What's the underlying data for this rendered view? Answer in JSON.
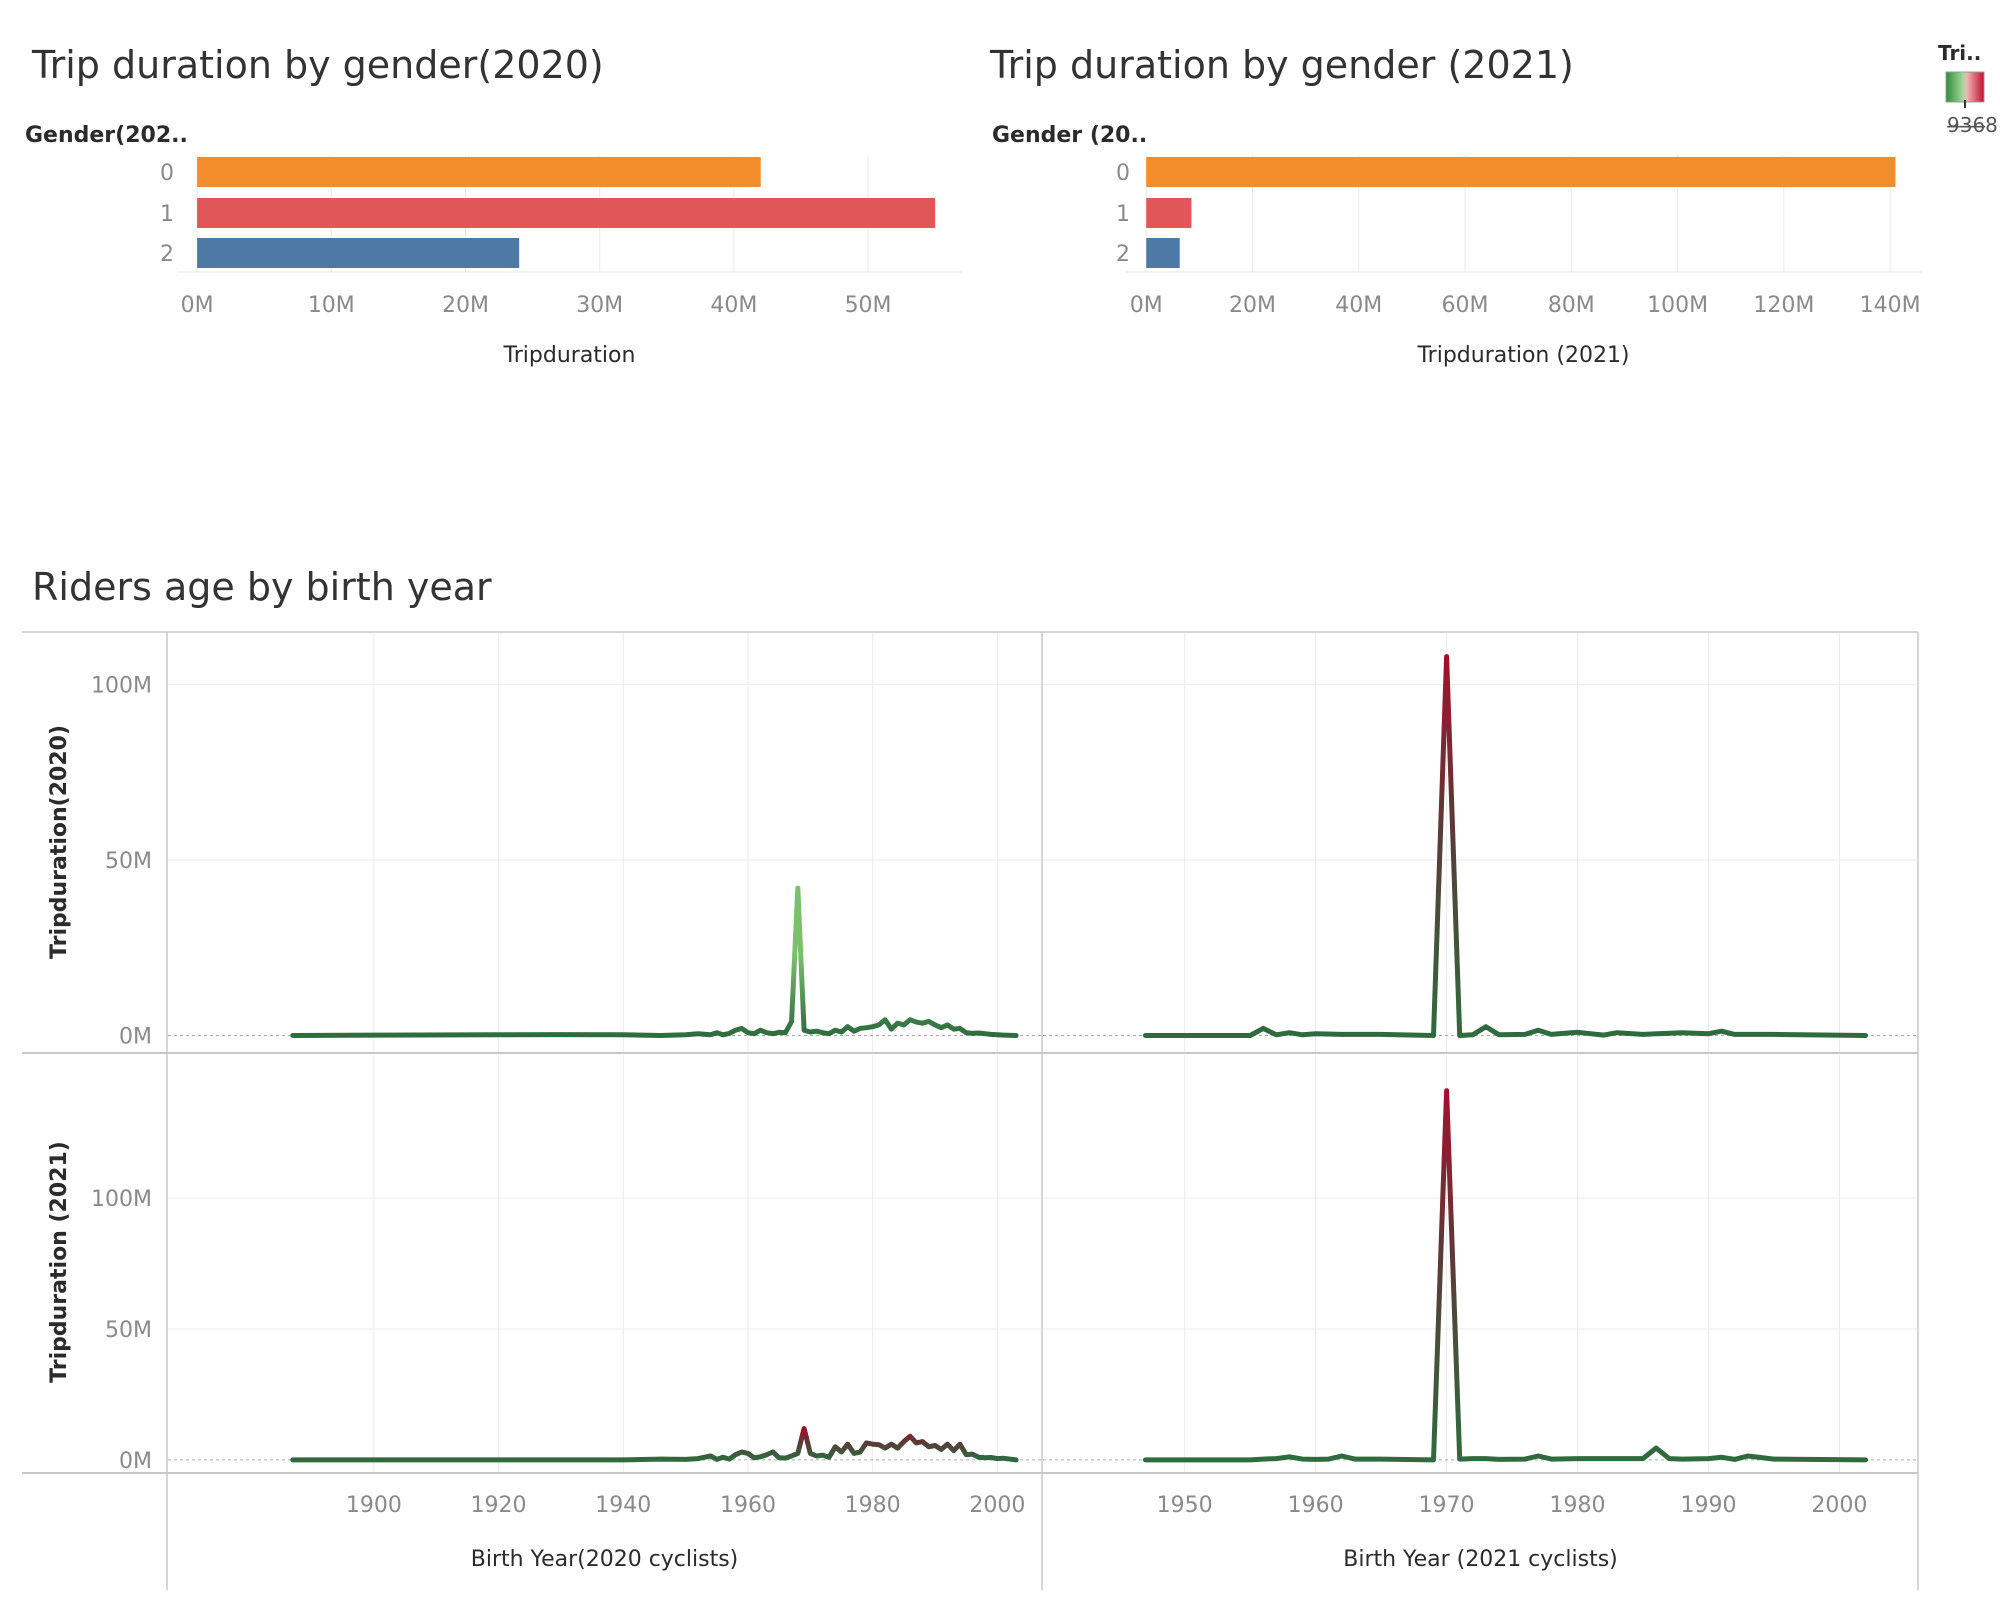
{
  "titles": {
    "bar2020": "Trip duration by gender(2020)",
    "bar2021": "Trip duration by gender (2021)",
    "lines": "Riders age by birth year"
  },
  "bar_headers": {
    "bar2020": "Gender(202..",
    "bar2021": "Gender (20.."
  },
  "legend": {
    "title": "Tri..",
    "label": "9̶3̶6̶8"
  },
  "chart_data": [
    {
      "id": "bar2020",
      "type": "bar",
      "orientation": "horizontal",
      "title": "Trip duration by gender(2020)",
      "ylabel": "Gender(202..",
      "xlabel": "Tripduration",
      "categories": [
        "0",
        "1",
        "2"
      ],
      "values": [
        42000000,
        55000000,
        24000000
      ],
      "colors": [
        "#F28E2B",
        "#E15759",
        "#4E79A7"
      ],
      "xlim": [
        -1500000,
        57000000
      ],
      "ticks": [
        0,
        10000000,
        20000000,
        30000000,
        40000000,
        50000000
      ],
      "tick_labels": [
        "0M",
        "10M",
        "20M",
        "30M",
        "40M",
        "50M"
      ],
      "grid": true
    },
    {
      "id": "bar2021",
      "type": "bar",
      "orientation": "horizontal",
      "title": "Trip duration by gender (2021)",
      "ylabel": "Gender (20..",
      "xlabel": "Tripduration (2021)",
      "categories": [
        "0",
        "1",
        "2"
      ],
      "values": [
        141000000,
        8500000,
        6300000
      ],
      "colors": [
        "#F28E2B",
        "#E15759",
        "#4E79A7"
      ],
      "xlim": [
        -4000000,
        146000000
      ],
      "ticks": [
        0,
        20000000,
        40000000,
        60000000,
        80000000,
        100000000,
        120000000,
        140000000
      ],
      "tick_labels": [
        "0M",
        "20M",
        "40M",
        "60M",
        "80M",
        "100M",
        "120M",
        "140M"
      ],
      "grid": true
    },
    {
      "id": "line2020_a",
      "type": "line",
      "panel": "top-left",
      "x": [
        1887,
        1900,
        1920,
        1930,
        1940,
        1946,
        1950,
        1952,
        1954,
        1955,
        1956,
        1957,
        1958,
        1959,
        1960,
        1961,
        1962,
        1963,
        1964,
        1965,
        1966,
        1967,
        1968,
        1969,
        1970,
        1971,
        1972,
        1973,
        1974,
        1975,
        1976,
        1977,
        1978,
        1979,
        1980,
        1981,
        1982,
        1983,
        1984,
        1985,
        1986,
        1987,
        1988,
        1989,
        1990,
        1991,
        1992,
        1993,
        1994,
        1995,
        1996,
        1997,
        1998,
        1999,
        2000,
        2001,
        2003
      ],
      "values": [
        0,
        100000,
        200000,
        250000,
        200000,
        0,
        200000,
        500000,
        200000,
        800000,
        200000,
        600000,
        1500000,
        2000000,
        800000,
        500000,
        1500000,
        800000,
        500000,
        900000,
        800000,
        4000000,
        42000000,
        1500000,
        1000000,
        1200000,
        800000,
        500000,
        1500000,
        1000000,
        2500000,
        1200000,
        2000000,
        2200000,
        2500000,
        3000000,
        4500000,
        1800000,
        3500000,
        3000000,
        4500000,
        3800000,
        3500000,
        4000000,
        3000000,
        2200000,
        3000000,
        1800000,
        2000000,
        800000,
        600000,
        700000,
        500000,
        300000,
        200000,
        100000,
        0
      ],
      "xlim": [
        1875,
        2007
      ],
      "ylim": [
        -5000000,
        115000000
      ],
      "yticks": [
        0,
        50000000,
        100000000
      ],
      "ytick_labels": [
        "0M",
        "50M",
        "100M"
      ],
      "ylabel": "Tripduration(2020)"
    },
    {
      "id": "line2021_a",
      "type": "line",
      "panel": "top-right",
      "x": [
        1947,
        1955,
        1956,
        1957,
        1958,
        1959,
        1960,
        1962,
        1965,
        1969,
        1970,
        1971,
        1972,
        1973,
        1974,
        1976,
        1977,
        1978,
        1980,
        1982,
        1983,
        1985,
        1988,
        1990,
        1991,
        1992,
        1995,
        2002
      ],
      "values": [
        0,
        0,
        2000000,
        200000,
        800000,
        200000,
        500000,
        300000,
        300000,
        0,
        108000000,
        0,
        200000,
        2500000,
        200000,
        300000,
        1500000,
        300000,
        900000,
        100000,
        800000,
        300000,
        800000,
        500000,
        1200000,
        300000,
        300000,
        0
      ],
      "xlim": [
        1943,
        2006
      ],
      "ylim": [
        -5000000,
        115000000
      ],
      "yticks": [
        0,
        50000000,
        100000000
      ],
      "ytick_labels": [
        "0M",
        "50M",
        "100M"
      ]
    },
    {
      "id": "line2020_b",
      "type": "line",
      "panel": "bottom-left",
      "x": [
        1887,
        1900,
        1920,
        1940,
        1946,
        1950,
        1952,
        1954,
        1955,
        1956,
        1957,
        1958,
        1959,
        1960,
        1961,
        1962,
        1963,
        1964,
        1965,
        1966,
        1967,
        1968,
        1969,
        1970,
        1971,
        1972,
        1973,
        1974,
        1975,
        1976,
        1977,
        1978,
        1979,
        1980,
        1981,
        1982,
        1983,
        1984,
        1985,
        1986,
        1987,
        1988,
        1989,
        1990,
        1991,
        1992,
        1993,
        1994,
        1995,
        1996,
        1997,
        1998,
        1999,
        2000,
        2001,
        2003
      ],
      "values": [
        0,
        0,
        0,
        0,
        300000,
        200000,
        500000,
        1500000,
        200000,
        1000000,
        300000,
        2000000,
        3000000,
        2500000,
        800000,
        1200000,
        2000000,
        3000000,
        800000,
        700000,
        1500000,
        2500000,
        12000000,
        2500000,
        1500000,
        1800000,
        1000000,
        5000000,
        3000000,
        6000000,
        2500000,
        3000000,
        6500000,
        6000000,
        5800000,
        4500000,
        6000000,
        4500000,
        7000000,
        9000000,
        6500000,
        7000000,
        5000000,
        5500000,
        4000000,
        6000000,
        3500000,
        6000000,
        2000000,
        2200000,
        1000000,
        800000,
        900000,
        500000,
        600000,
        0
      ],
      "xlim": [
        1875,
        2007
      ],
      "ylim": [
        -5000000,
        155000000
      ],
      "yticks": [
        0,
        50000000,
        100000000
      ],
      "ytick_labels": [
        "0M",
        "50M",
        "100M"
      ],
      "ylabel": "Tripduration (2021)"
    },
    {
      "id": "line2021_b",
      "type": "line",
      "panel": "bottom-right",
      "x": [
        1947,
        1955,
        1956,
        1957,
        1958,
        1959,
        1960,
        1961,
        1962,
        1963,
        1965,
        1969,
        1970,
        1971,
        1972,
        1973,
        1974,
        1976,
        1977,
        1978,
        1980,
        1985,
        1986,
        1987,
        1988,
        1990,
        1991,
        1992,
        1993,
        1995,
        2002
      ],
      "values": [
        0,
        0,
        300000,
        500000,
        1200000,
        300000,
        200000,
        300000,
        1500000,
        300000,
        300000,
        0,
        141000000,
        300000,
        500000,
        500000,
        200000,
        300000,
        1500000,
        300000,
        500000,
        500000,
        4500000,
        500000,
        300000,
        500000,
        1000000,
        200000,
        1500000,
        300000,
        0
      ],
      "xlim": [
        1943,
        2006
      ],
      "ylim": [
        -5000000,
        155000000
      ],
      "yticks": [
        0,
        50000000,
        100000000
      ],
      "ytick_labels": [
        "0M",
        "50M",
        "100M"
      ]
    }
  ],
  "x_axes": {
    "left": {
      "label": "Birth Year(2020 cyclists)",
      "ticks": [
        1900,
        1920,
        1940,
        1960,
        1980,
        2000
      ],
      "tick_labels": [
        "1900",
        "1920",
        "1940",
        "1960",
        "1980",
        "2000"
      ]
    },
    "right": {
      "label": "Birth Year (2021 cyclists)",
      "ticks": [
        1950,
        1960,
        1970,
        1980,
        1990,
        2000
      ],
      "tick_labels": [
        "1950",
        "1960",
        "1970",
        "1980",
        "1990",
        "2000"
      ]
    }
  },
  "colors": {
    "line_low": "#2E6B3E",
    "line_mid": "#7CC06E",
    "line_high": "#A5102F",
    "grid": "#EBEBEB",
    "divider": "#C8C8C8",
    "axis_text": "#8A8A8A",
    "title_text": "#333333",
    "label_text": "#2B2B2B"
  }
}
